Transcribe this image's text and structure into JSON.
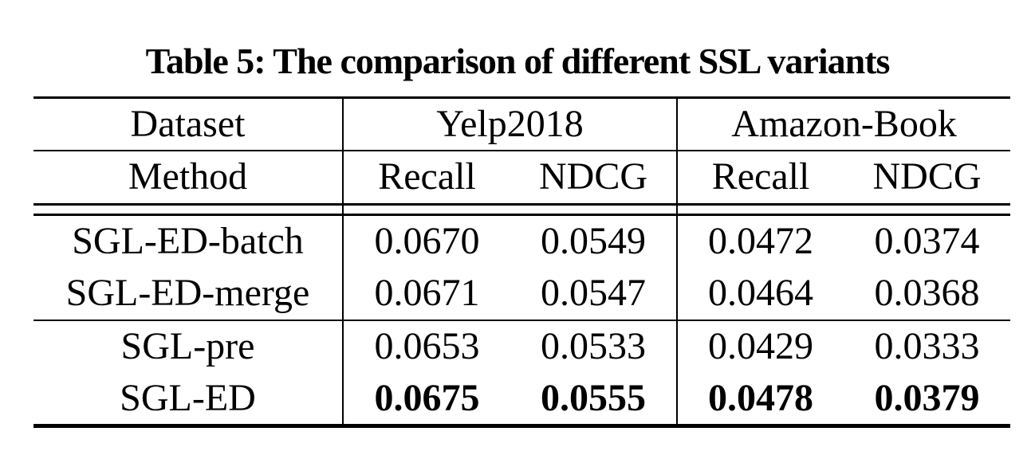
{
  "title": "Table 5: The comparison of different SSL variants",
  "table": {
    "dataset_label": "Dataset",
    "method_label": "Method",
    "groups": [
      "Yelp2018",
      "Amazon-Book"
    ],
    "metrics": [
      "Recall",
      "NDCG",
      "Recall",
      "NDCG"
    ],
    "rows": [
      {
        "method": "SGL-ED-batch",
        "values": [
          "0.0670",
          "0.0549",
          "0.0472",
          "0.0374"
        ],
        "bold": false,
        "section": 0
      },
      {
        "method": "SGL-ED-merge",
        "values": [
          "0.0671",
          "0.0547",
          "0.0464",
          "0.0368"
        ],
        "bold": false,
        "section": 0
      },
      {
        "method": "SGL-pre",
        "values": [
          "0.0653",
          "0.0533",
          "0.0429",
          "0.0333"
        ],
        "bold": false,
        "section": 1
      },
      {
        "method": "SGL-ED",
        "values": [
          "0.0675",
          "0.0555",
          "0.0478",
          "0.0379"
        ],
        "bold": true,
        "section": 1
      }
    ]
  },
  "colors": {
    "text": "#000000",
    "background": "#ffffff",
    "rule": "#000000"
  }
}
